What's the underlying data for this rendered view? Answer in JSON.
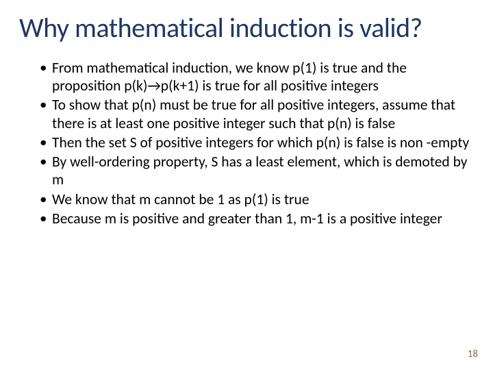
{
  "title_color": "#1f3864",
  "body_color": "#000000",
  "pagenum_color": "#8a6d4a",
  "background_color": "#ffffff",
  "title": "Why mathematical induction is valid?",
  "bullets": [
    "From mathematical induction, we know p(1) is true and the proposition p(k)→p(k+1) is true for all positive integers",
    "To show that p(n) must be true for all positive integers, assume that there is at least one positive integer such that p(n) is false",
    "Then the set S of positive integers for which p(n) is false is non -empty",
    "By well-ordering property, S has a least element, which is demoted by m",
    "We know that m cannot be 1 as p(1) is true",
    "Because m is positive and greater than 1, m-1 is a positive integer"
  ],
  "page_number": "18"
}
